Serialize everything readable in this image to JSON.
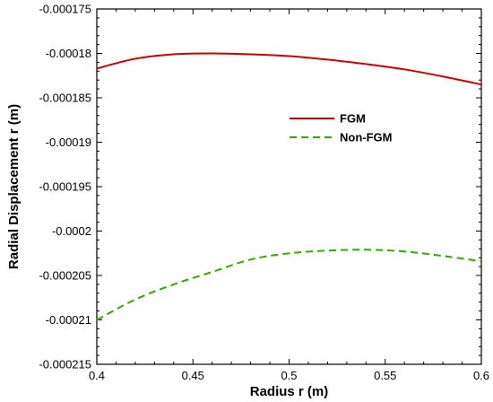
{
  "chart_data": {
    "type": "line",
    "xlabel": "Radius r (m)",
    "ylabel": "Radial Displacement r (m)",
    "xlim": [
      0.4,
      0.6
    ],
    "ylim": [
      -0.000215,
      -0.000175
    ],
    "x_ticks": [
      0.4,
      0.45,
      0.5,
      0.55,
      0.6
    ],
    "x_tick_labels": [
      "0.4",
      "0.45",
      "0.5",
      "0.55",
      "0.6"
    ],
    "y_ticks": [
      -0.000175,
      -0.00018,
      -0.000185,
      -0.00019,
      -0.000195,
      -0.0002,
      -0.000205,
      -0.00021,
      -0.000215
    ],
    "y_tick_labels": [
      "-0.000175",
      "-0.00018",
      "-0.000185",
      "-0.00019",
      "-0.000195",
      "-0.0002",
      "-0.000205",
      "-0.00021",
      "-0.000215"
    ],
    "grid": false,
    "legend_position": "center-right",
    "series": [
      {
        "name": "FGM",
        "color": "#cc0000",
        "style": "solid",
        "x": [
          0.4,
          0.42,
          0.44,
          0.46,
          0.48,
          0.5,
          0.52,
          0.54,
          0.56,
          0.58,
          0.6
        ],
        "y": [
          -0.0001817,
          -0.0001806,
          -0.0001801,
          -0.00018,
          -0.0001801,
          -0.0001803,
          -0.0001807,
          -0.0001812,
          -0.0001818,
          -0.0001826,
          -0.0001835
        ]
      },
      {
        "name": "Non-FGM",
        "color": "#33aa00",
        "style": "dashed",
        "x": [
          0.4,
          0.42,
          0.44,
          0.46,
          0.48,
          0.5,
          0.52,
          0.54,
          0.56,
          0.58,
          0.6
        ],
        "y": [
          -0.00021,
          -0.0002077,
          -0.000206,
          -0.0002046,
          -0.0002032,
          -0.0002025,
          -0.0002022,
          -0.0002021,
          -0.0002023,
          -0.0002028,
          -0.0002034
        ]
      }
    ]
  }
}
